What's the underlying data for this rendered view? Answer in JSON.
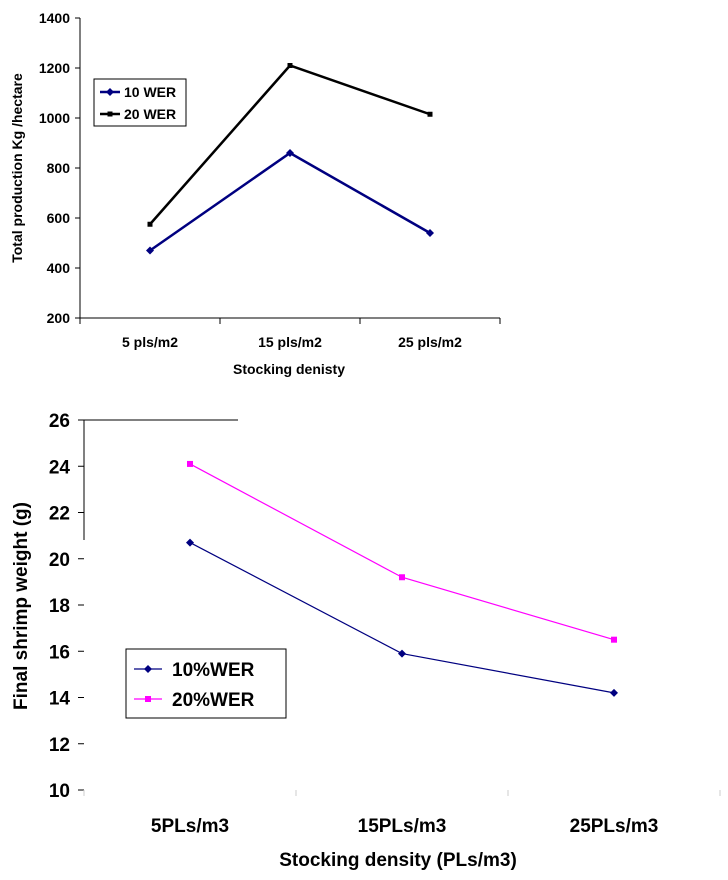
{
  "chart_data": [
    {
      "type": "line",
      "title": "",
      "xlabel": "Stocking denisty",
      "ylabel": "Total production Kg /hectare",
      "categories": [
        "5 pls/m2",
        "15 pls/m2",
        "25 pls/m2"
      ],
      "ylim": [
        200,
        1400
      ],
      "yticks": [
        200,
        400,
        600,
        800,
        1000,
        1200,
        1400
      ],
      "series": [
        {
          "name": "10 WER",
          "values": [
            470,
            860,
            540
          ],
          "color": "#000080"
        },
        {
          "name": "20 WER",
          "values": [
            575,
            1210,
            1015
          ],
          "color": "#000000"
        }
      ],
      "legend": "top-left"
    },
    {
      "type": "line",
      "title": "",
      "xlabel": "Stocking density (PLs/m3)",
      "ylabel": "Final shrimp weight (g)",
      "categories": [
        "5PLs/m3",
        "15PLs/m3",
        "25PLs/m3"
      ],
      "ylim": [
        10,
        26
      ],
      "yticks": [
        10,
        12,
        14,
        16,
        18,
        20,
        22,
        24,
        26
      ],
      "series": [
        {
          "name": "10%WER",
          "values": [
            20.7,
            15.9,
            14.2
          ],
          "color": "#000080"
        },
        {
          "name": "20%WER",
          "values": [
            24.1,
            19.2,
            16.5
          ],
          "color": "#FF00FF"
        }
      ],
      "legend": "bottom-left"
    }
  ]
}
